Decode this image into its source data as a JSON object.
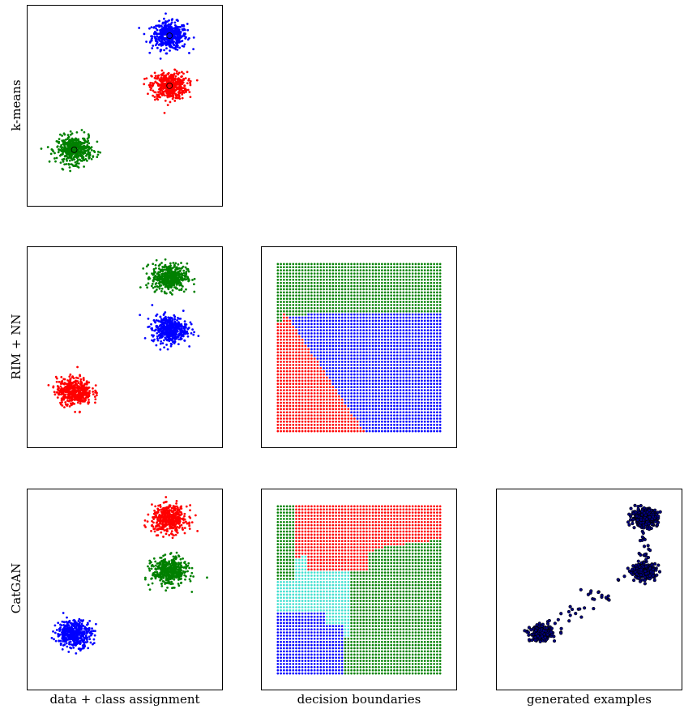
{
  "row_labels": {
    "kmeans": "k-means",
    "rim": "RIM + NN",
    "catgan": "CatGAN"
  },
  "column_labels": {
    "data": "data + class assignment",
    "boundaries": "decision boundaries",
    "generated": "generated examples"
  },
  "colors": {
    "red": "#ff0000",
    "green": "#008000",
    "blue": "#0000ff",
    "cyan": "#40e0d0",
    "navy": "#000080"
  },
  "chart_data": [
    {
      "type": "scatter",
      "panel": "k-means / data + class assignment",
      "xlim": [
        0,
        10
      ],
      "ylim": [
        0,
        10
      ],
      "clusters": [
        {
          "label": "blue cluster",
          "color": "blue",
          "center": [
            7.3,
            8.5
          ],
          "spread": 0.45,
          "count": 450
        },
        {
          "label": "red cluster",
          "color": "red",
          "center": [
            7.3,
            6.0
          ],
          "spread": 0.45,
          "count": 450
        },
        {
          "label": "green cluster",
          "color": "green",
          "center": [
            2.4,
            2.8
          ],
          "spread": 0.45,
          "count": 450
        }
      ],
      "centroids": [
        [
          7.3,
          8.5
        ],
        [
          7.3,
          6.0
        ],
        [
          2.4,
          2.8
        ]
      ]
    },
    {
      "type": "scatter",
      "panel": "RIM + NN / data + class assignment",
      "xlim": [
        0,
        10
      ],
      "ylim": [
        0,
        10
      ],
      "clusters": [
        {
          "label": "green cluster",
          "color": "green",
          "center": [
            7.3,
            8.5
          ],
          "spread": 0.45,
          "count": 450
        },
        {
          "label": "blue cluster",
          "color": "blue",
          "center": [
            7.3,
            5.9
          ],
          "spread": 0.45,
          "count": 450
        },
        {
          "label": "red cluster",
          "color": "red",
          "center": [
            2.4,
            2.8
          ],
          "spread": 0.45,
          "count": 450
        }
      ]
    },
    {
      "type": "scatter",
      "panel": "RIM + NN / decision boundaries",
      "grid_n": 54,
      "regions": "green top band; red left wedge; blue lower right"
    },
    {
      "type": "scatter",
      "panel": "CatGAN / data + class assignment",
      "xlim": [
        0,
        10
      ],
      "ylim": [
        0,
        10
      ],
      "clusters": [
        {
          "label": "red cluster",
          "color": "red",
          "center": [
            7.3,
            8.5
          ],
          "spread": 0.45,
          "count": 450
        },
        {
          "label": "green cluster",
          "color": "green",
          "center": [
            7.3,
            5.9
          ],
          "spread": 0.45,
          "count": 450
        },
        {
          "label": "blue cluster",
          "color": "blue",
          "center": [
            2.4,
            2.8
          ],
          "spread": 0.45,
          "count": 450
        }
      ]
    },
    {
      "type": "scatter",
      "panel": "CatGAN / decision boundaries",
      "grid_n": 54,
      "regions": "red upper region; green right region; cyan middle band; blue lower left; green left strip"
    },
    {
      "type": "scatter",
      "panel": "CatGAN / generated examples",
      "color": "navy",
      "clusters": [
        {
          "center": [
            8.0,
            8.6
          ],
          "spread": 0.35,
          "count": 350
        },
        {
          "center": [
            8.0,
            5.9
          ],
          "spread": 0.3,
          "count": 300
        },
        {
          "center": [
            2.4,
            2.8
          ],
          "spread": 0.3,
          "count": 250
        }
      ],
      "bridge_points": 60
    }
  ]
}
